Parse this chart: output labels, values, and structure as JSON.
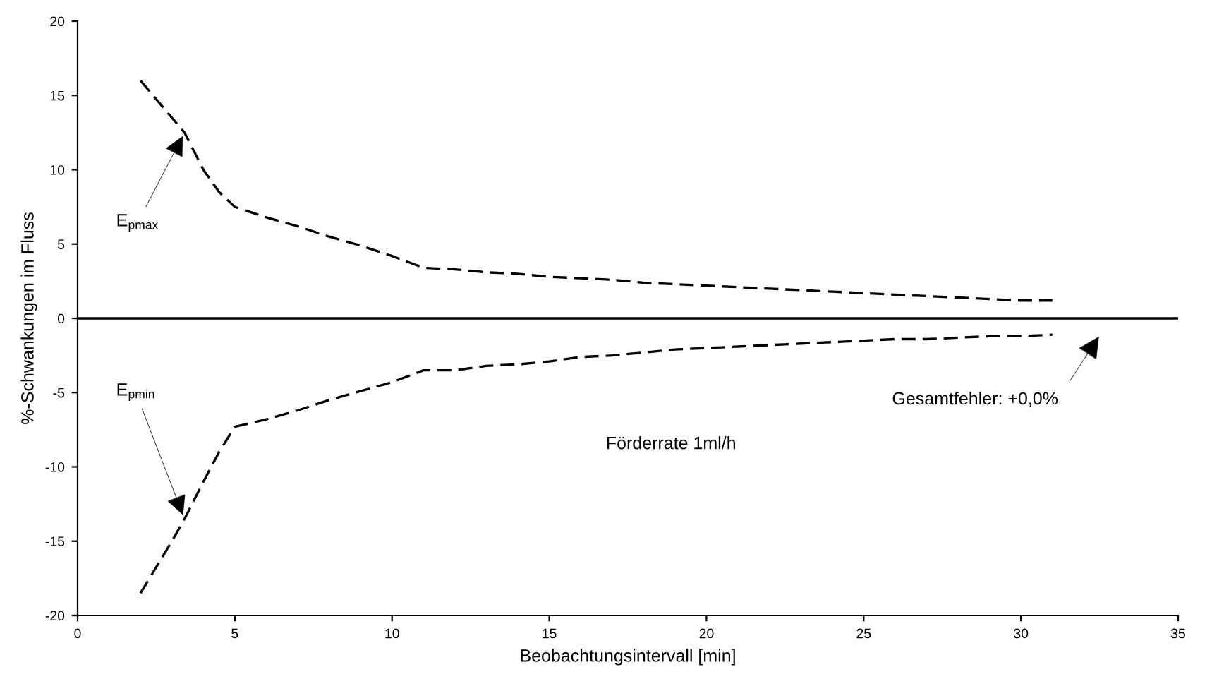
{
  "chart_data": {
    "type": "line",
    "xlabel": "Beobachtungsintervall [min]",
    "ylabel": "%-Schwankungen im Fluss",
    "x": [
      2,
      3,
      3.4,
      4,
      4.5,
      5,
      6,
      7,
      8,
      9,
      10,
      11,
      12,
      13,
      14,
      15,
      16,
      17,
      18,
      19,
      20,
      21,
      22,
      23,
      24,
      25,
      26,
      27,
      28,
      29,
      30,
      31
    ],
    "series": [
      {
        "color": "#000000",
        "values": [
          16,
          13.5,
          12.5,
          10,
          8.5,
          7.5,
          6.8,
          6.2,
          5.5,
          4.9,
          4.2,
          3.4,
          3.3,
          3.1,
          3.0,
          2.8,
          2.7,
          2.6,
          2.4,
          2.3,
          2.2,
          2.1,
          2.0,
          1.9,
          1.8,
          1.7,
          1.6,
          1.5,
          1.4,
          1.3,
          1.2,
          1.2
        ]
      },
      {
        "color": "#000000",
        "values": [
          -18.5,
          -15,
          -13.5,
          -11,
          -9,
          -7.3,
          -6.8,
          -6.2,
          -5.5,
          -4.9,
          -4.3,
          -3.5,
          -3.5,
          -3.2,
          -3.1,
          -2.9,
          -2.6,
          -2.5,
          -2.3,
          -2.1,
          -2.0,
          -1.9,
          -1.8,
          -1.7,
          -1.6,
          -1.5,
          -1.4,
          -1.4,
          -1.3,
          -1.2,
          -1.2,
          -1.1
        ]
      }
    ],
    "xlim": [
      0,
      35
    ],
    "xticks": [
      0,
      5,
      10,
      15,
      20,
      25,
      30,
      35
    ],
    "ylim": [
      -20,
      20
    ],
    "yticks": [
      -20,
      -15,
      -10,
      -5,
      0,
      5,
      10,
      15,
      20
    ],
    "ref_lines": [
      {
        "axis": "y",
        "value": 0,
        "color": "#000000",
        "line_style": "solid"
      }
    ],
    "annotations": [
      {
        "text": "E$_{pmax}$",
        "x": 3.4,
        "y": 12.5
      },
      {
        "text": "E$_{pmin}$",
        "x": 3.4,
        "y": -13.5
      },
      "Gesamtfehler: +0,0%",
      "Förderrate 1ml/h"
    ],
    "line_style": "dashed",
    "grid": false,
    "legend": false
  }
}
